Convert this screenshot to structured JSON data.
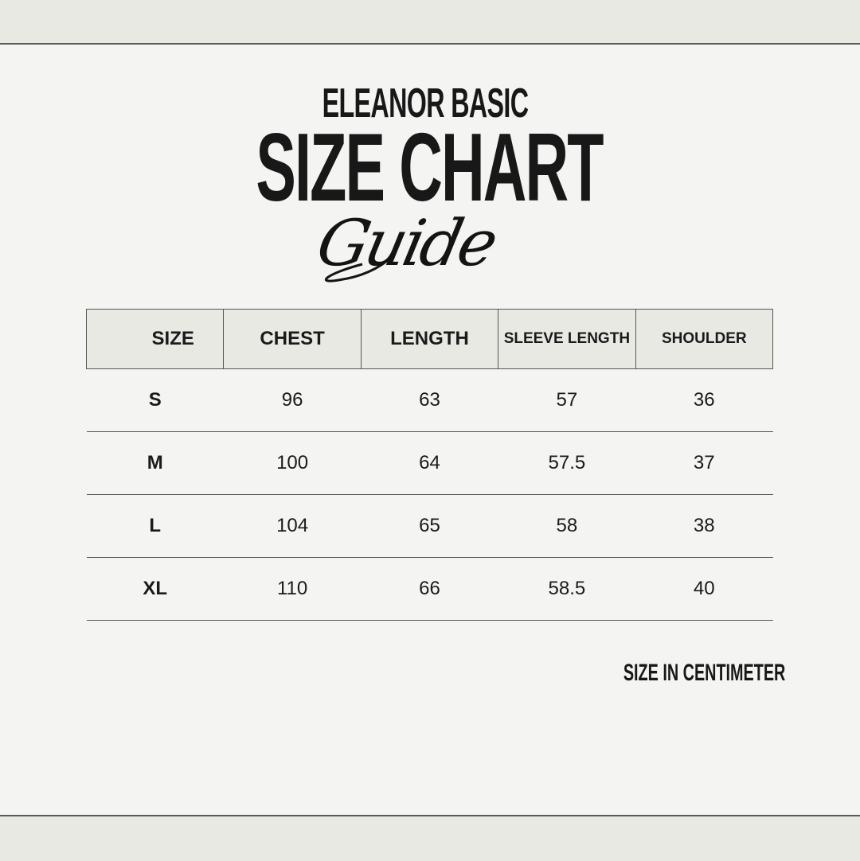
{
  "brand": "ELEANOR BASIC",
  "title": "SIZE CHART",
  "subtitle_script": "Guide",
  "table": {
    "headers": [
      "SIZE",
      "CHEST",
      "LENGTH",
      "SLEEVE LENGTH",
      "SHOULDER"
    ],
    "rows": [
      [
        "S",
        "96",
        "63",
        "57",
        "36"
      ],
      [
        "M",
        "100",
        "64",
        "57.5",
        "37"
      ],
      [
        "L",
        "104",
        "65",
        "58",
        "38"
      ],
      [
        "XL",
        "110",
        "66",
        "58.5",
        "40"
      ]
    ]
  },
  "unit_note": "SIZE IN CENTIMETER",
  "colors": {
    "background": "#f4f4f2",
    "band": "#e9e9e4",
    "text": "#1a1a1a"
  }
}
